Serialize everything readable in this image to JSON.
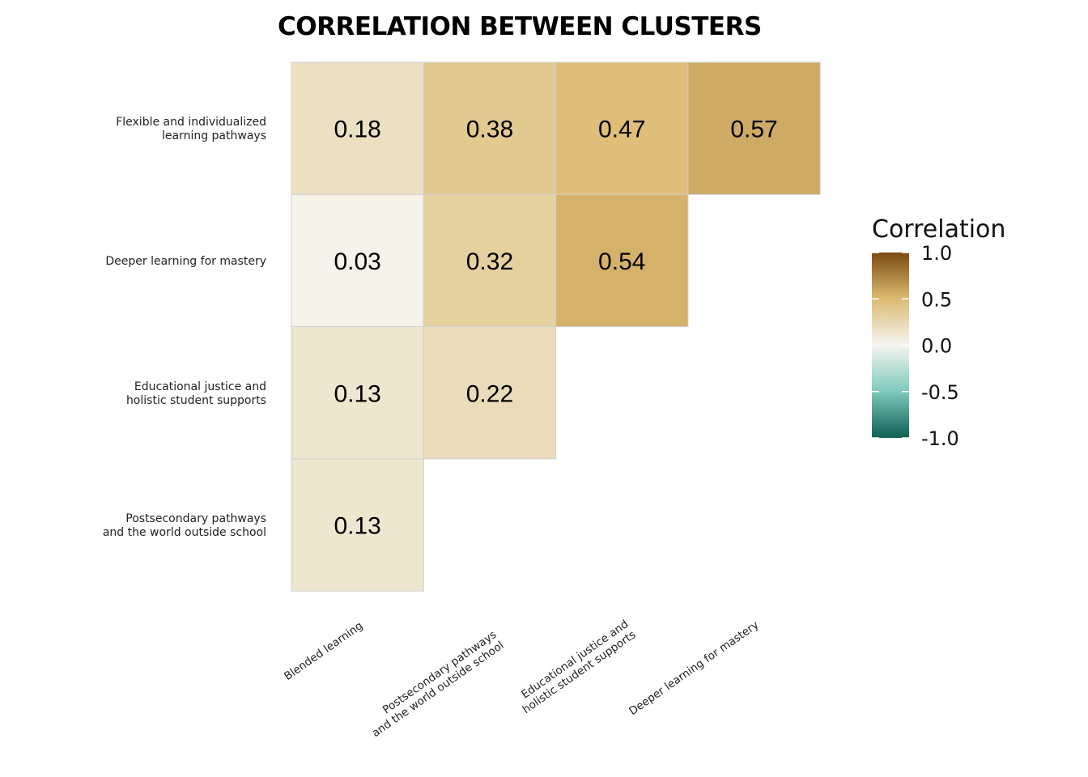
{
  "chart_data": {
    "type": "heatmap",
    "title": "CORRELATION BETWEEN CLUSTERS",
    "x_categories": [
      "Blended learning",
      "Postsecondary pathways\nand the world outside school",
      "Educational justice and\nholistic student supports",
      "Deeper learning for mastery"
    ],
    "y_categories": [
      "Flexible and individualized\nlearning pathways",
      "Deeper learning for mastery",
      "Educational justice and\nholistic student supports",
      "Postsecondary pathways\nand the world outside school"
    ],
    "cells": [
      {
        "row": 0,
        "col": 0,
        "value": 0.18,
        "label": "0.18"
      },
      {
        "row": 0,
        "col": 1,
        "value": 0.38,
        "label": "0.38"
      },
      {
        "row": 0,
        "col": 2,
        "value": 0.47,
        "label": "0.47"
      },
      {
        "row": 0,
        "col": 3,
        "value": 0.57,
        "label": "0.57"
      },
      {
        "row": 1,
        "col": 0,
        "value": 0.03,
        "label": "0.03"
      },
      {
        "row": 1,
        "col": 1,
        "value": 0.32,
        "label": "0.32"
      },
      {
        "row": 1,
        "col": 2,
        "value": 0.54,
        "label": "0.54"
      },
      {
        "row": 2,
        "col": 0,
        "value": 0.13,
        "label": "0.13"
      },
      {
        "row": 2,
        "col": 1,
        "value": 0.22,
        "label": "0.22"
      },
      {
        "row": 3,
        "col": 0,
        "value": 0.13,
        "label": "0.13"
      }
    ],
    "legend": {
      "title": "Correlation",
      "min": -1.0,
      "max": 1.0,
      "ticks": [
        1.0,
        0.5,
        0.0,
        -0.5,
        -1.0
      ],
      "tick_labels": [
        "1.0",
        "0.5",
        "0.0",
        "-0.5",
        "-1.0"
      ],
      "placement": "right"
    },
    "colors": {
      "low": "#0f5f55",
      "low_mid": "#7ec9bb",
      "mid": "#f5f5f1",
      "high_mid": "#dcbb71",
      "high": "#7a4a12",
      "cell_border": "#cfcfcf"
    }
  }
}
